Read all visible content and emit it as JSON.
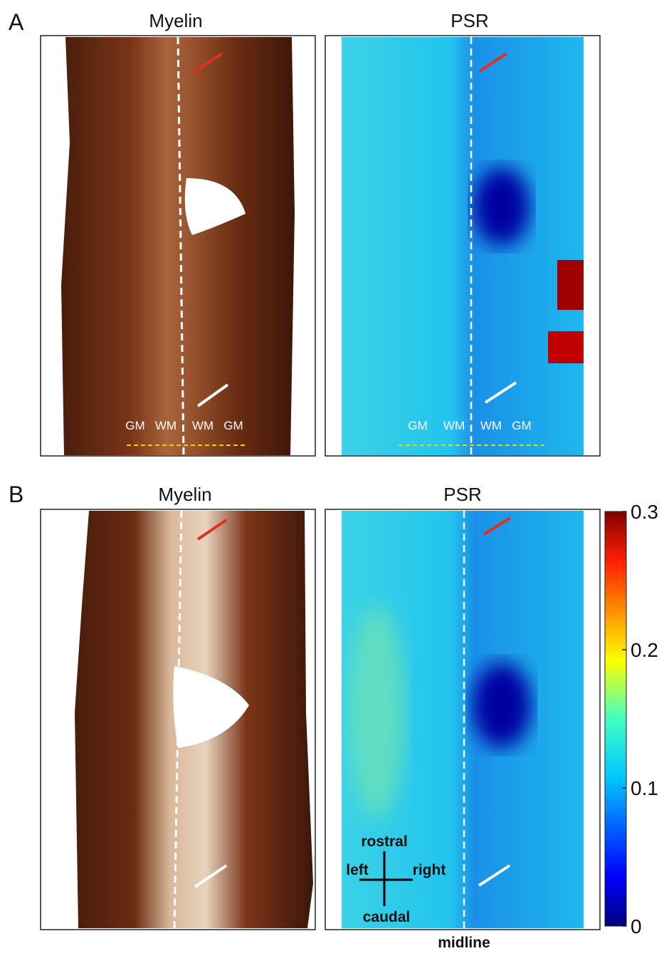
{
  "panels": [
    {
      "label": "A",
      "images": [
        {
          "title": "Myelin",
          "regions": [
            "GM",
            "WM",
            "WM",
            "GM"
          ]
        },
        {
          "title": "PSR",
          "regions": [
            "GM",
            "WM",
            "WM",
            "GM"
          ]
        }
      ]
    },
    {
      "label": "B",
      "images": [
        {
          "title": "Myelin"
        },
        {
          "title": "PSR",
          "orientation": {
            "up": "rostral",
            "down": "caudal",
            "left": "left",
            "right": "right"
          },
          "midline": "midline"
        }
      ]
    }
  ],
  "colorbar": {
    "range": [
      0,
      0.3
    ],
    "ticks": [
      0,
      0.1,
      0.2,
      0.3
    ]
  }
}
